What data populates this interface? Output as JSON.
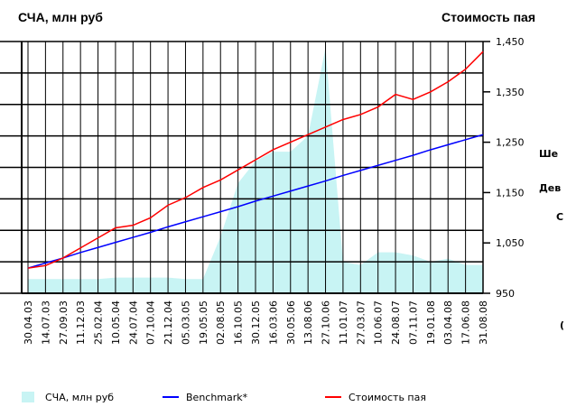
{
  "chart_data": {
    "type": "combo",
    "title_left": "СЧА, млн руб",
    "title_right": "Стоимость пая",
    "categories": [
      "30.04.03",
      "14.07.03",
      "27.09.03",
      "11.12.03",
      "25.02.04",
      "10.05.04",
      "24.07.04",
      "07.10.04",
      "21.12.04",
      "05.03.05",
      "19.05.05",
      "02.08.05",
      "16.10.05",
      "30.12.05",
      "16.03.06",
      "30.05.06",
      "13.08.06",
      "27.10.06",
      "11.01.07",
      "27.03.07",
      "10.06.07",
      "24.08.07",
      "07.11.07",
      "19.01.08",
      "03.04.08",
      "17.06.08",
      "31.08.08"
    ],
    "ylim": [
      0,
      8
    ],
    "yticks": [
      0,
      1,
      2,
      3,
      4,
      5,
      6,
      7,
      8
    ],
    "y2lim": [
      950,
      1450
    ],
    "y2ticks": [
      {
        "value": 1450,
        "label": "1,450"
      },
      {
        "value": 1350,
        "label": "1,350"
      },
      {
        "value": 1250,
        "label": "1,250"
      },
      {
        "value": 1150,
        "label": "1,150"
      },
      {
        "value": 1050,
        "label": "1,050"
      },
      {
        "value": 950,
        "label": "950"
      }
    ],
    "grid": true,
    "series": [
      {
        "name": "СЧА, млн руб",
        "type": "area",
        "color": "#c8f4f4",
        "axis": "y",
        "values": [
          0.45,
          0.45,
          0.45,
          0.45,
          0.45,
          0.5,
          0.5,
          0.5,
          0.5,
          0.45,
          0.45,
          1.8,
          3.5,
          4.2,
          4.5,
          4.5,
          5.0,
          7.8,
          1.0,
          0.9,
          1.3,
          1.3,
          1.2,
          1.0,
          1.1,
          0.9,
          0.9
        ]
      },
      {
        "name": "Benchmark*",
        "type": "line",
        "color": "#0000ff",
        "axis": "y2",
        "values": [
          1000,
          1010,
          1020,
          1031,
          1041,
          1051,
          1061,
          1071,
          1082,
          1092,
          1102,
          1112,
          1122,
          1133,
          1143,
          1153,
          1163,
          1173,
          1184,
          1194,
          1204,
          1214,
          1224,
          1235,
          1245,
          1255,
          1265
        ]
      },
      {
        "name": "Стоимость пая",
        "type": "line",
        "color": "#ff0000",
        "axis": "y2",
        "values": [
          1000,
          1005,
          1020,
          1040,
          1060,
          1080,
          1085,
          1100,
          1125,
          1140,
          1160,
          1175,
          1195,
          1215,
          1235,
          1250,
          1265,
          1280,
          1295,
          1305,
          1320,
          1345,
          1335,
          1350,
          1370,
          1395,
          1430
        ]
      }
    ],
    "fragments": [
      "Ше",
      "Дев",
      "С",
      "("
    ]
  }
}
